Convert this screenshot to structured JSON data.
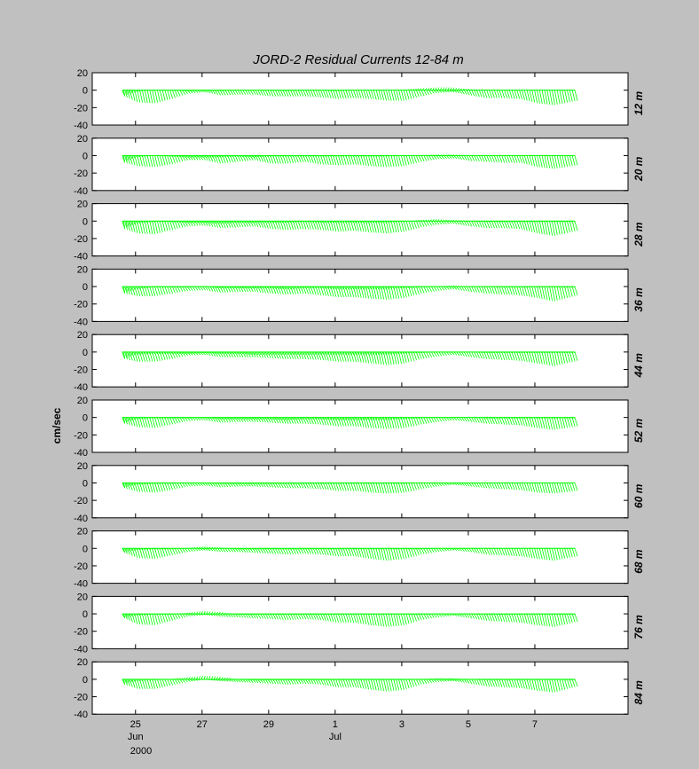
{
  "chart_data": {
    "type": "stick_plot",
    "title": "JORD-2  Residual Currents  12-84 m",
    "ylabel": "cm/sec",
    "ylim": [
      -40,
      20
    ],
    "yticks": [
      20,
      0,
      -20,
      -40
    ],
    "xticks": [
      {
        "day": 25,
        "label": "25",
        "sublabel": "Jun"
      },
      {
        "day": 27,
        "label": "27",
        "sublabel": ""
      },
      {
        "day": 29,
        "label": "29",
        "sublabel": ""
      },
      {
        "day": 31,
        "label": "1",
        "sublabel": "Jul"
      },
      {
        "day": 33,
        "label": "3",
        "sublabel": ""
      },
      {
        "day": 35,
        "label": "5",
        "sublabel": ""
      },
      {
        "day": 37,
        "label": "7",
        "sublabel": ""
      }
    ],
    "year_label": "2000",
    "xlim_days": [
      23.7,
      39.8
    ],
    "data_range_days": [
      24.6,
      38.2
    ],
    "stick_color": "#00ff00",
    "panels": [
      {
        "depth": "12 m",
        "envelope_t": [
          24.6,
          25.0,
          25.5,
          26.0,
          26.5,
          27.0,
          27.5,
          28.0,
          28.5,
          29.0,
          29.5,
          30.0,
          30.5,
          31.0,
          31.5,
          32.0,
          32.5,
          33.0,
          33.5,
          34.0,
          34.5,
          35.0,
          35.5,
          36.0,
          36.5,
          37.0,
          37.5,
          38.2
        ],
        "upper": [
          -6,
          -2,
          0,
          0,
          -1,
          0,
          -1,
          0,
          0,
          0,
          -1,
          0,
          0,
          -1,
          0,
          0,
          0,
          0,
          2,
          3,
          3,
          1,
          0,
          0,
          0,
          0,
          0,
          0
        ],
        "lower": [
          -7,
          -14,
          -15,
          -10,
          -4,
          -2,
          -6,
          -5,
          -5,
          -7,
          -7,
          -7,
          -8,
          -10,
          -9,
          -10,
          -12,
          -12,
          -7,
          -3,
          -2,
          -6,
          -9,
          -9,
          -10,
          -15,
          -17,
          -12
        ]
      },
      {
        "depth": "20 m",
        "envelope_t": [
          24.6,
          25.0,
          25.5,
          26.0,
          26.5,
          27.0,
          27.5,
          28.0,
          28.5,
          29.0,
          29.5,
          30.0,
          30.5,
          31.0,
          31.5,
          32.0,
          32.5,
          33.0,
          33.5,
          34.0,
          34.5,
          35.0,
          35.5,
          36.0,
          36.5,
          37.0,
          37.5,
          38.2
        ],
        "upper": [
          -7,
          -2,
          0,
          -1,
          -2,
          -2,
          -2,
          -1,
          -2,
          -1,
          -1,
          -1,
          -1,
          -1,
          -1,
          -1,
          -1,
          0,
          0,
          1,
          1,
          0,
          0,
          0,
          0,
          0,
          0,
          0
        ],
        "lower": [
          -8,
          -12,
          -13,
          -10,
          -5,
          -5,
          -9,
          -7,
          -5,
          -9,
          -9,
          -7,
          -10,
          -11,
          -10,
          -12,
          -13,
          -12,
          -7,
          -4,
          -3,
          -6,
          -7,
          -8,
          -8,
          -13,
          -15,
          -11
        ]
      },
      {
        "depth": "28 m",
        "envelope_t": [
          24.6,
          25.0,
          25.5,
          26.0,
          26.5,
          27.0,
          27.5,
          28.0,
          28.5,
          29.0,
          29.5,
          30.0,
          30.5,
          31.0,
          31.5,
          32.0,
          32.5,
          33.0,
          33.5,
          34.0,
          34.5,
          35.0,
          35.5,
          36.0,
          36.5,
          37.0,
          37.5,
          38.2
        ],
        "upper": [
          -8,
          -3,
          -1,
          -1,
          -2,
          -2,
          -3,
          -2,
          -2,
          -2,
          -2,
          -1,
          -2,
          -2,
          -2,
          -2,
          -2,
          -1,
          1,
          2,
          1,
          0,
          -1,
          -1,
          -1,
          -1,
          -1,
          -1
        ],
        "lower": [
          -9,
          -14,
          -15,
          -10,
          -6,
          -5,
          -8,
          -7,
          -6,
          -9,
          -10,
          -9,
          -10,
          -12,
          -11,
          -13,
          -14,
          -12,
          -7,
          -4,
          -3,
          -6,
          -8,
          -8,
          -9,
          -14,
          -17,
          -11
        ]
      },
      {
        "depth": "36 m",
        "envelope_t": [
          24.6,
          25.0,
          25.5,
          26.0,
          26.5,
          27.0,
          27.5,
          28.0,
          28.5,
          29.0,
          29.5,
          30.0,
          30.5,
          31.0,
          31.5,
          32.0,
          32.5,
          33.0,
          33.5,
          34.0,
          34.5,
          35.0,
          35.5,
          36.0,
          36.5,
          37.0,
          37.5,
          38.2
        ],
        "upper": [
          -7,
          -3,
          -1,
          -1,
          -1,
          0,
          -2,
          -2,
          -2,
          -2,
          -3,
          -2,
          -2,
          -3,
          -3,
          -3,
          -3,
          -2,
          -1,
          0,
          1,
          0,
          0,
          -1,
          -1,
          -1,
          -1,
          -1
        ],
        "lower": [
          -8,
          -11,
          -11,
          -8,
          -5,
          -4,
          -7,
          -6,
          -6,
          -8,
          -9,
          -8,
          -10,
          -12,
          -12,
          -14,
          -15,
          -13,
          -8,
          -5,
          -3,
          -6,
          -8,
          -9,
          -10,
          -13,
          -17,
          -10
        ]
      },
      {
        "depth": "44 m",
        "envelope_t": [
          24.6,
          25.0,
          25.5,
          26.0,
          26.5,
          27.0,
          27.5,
          28.0,
          28.5,
          29.0,
          29.5,
          30.0,
          30.5,
          31.0,
          31.5,
          32.0,
          32.5,
          33.0,
          33.5,
          34.0,
          34.5,
          35.0,
          35.5,
          36.0,
          36.5,
          37.0,
          37.5,
          38.2
        ],
        "upper": [
          -7,
          -3,
          -2,
          -2,
          -2,
          -1,
          -2,
          -2,
          -3,
          -3,
          -3,
          -3,
          -3,
          -3,
          -3,
          -3,
          -3,
          -2,
          -1,
          0,
          0,
          0,
          -1,
          -1,
          -1,
          -1,
          -1,
          -1
        ],
        "lower": [
          -8,
          -11,
          -11,
          -8,
          -4,
          -3,
          -6,
          -6,
          -6,
          -7,
          -8,
          -8,
          -9,
          -11,
          -11,
          -13,
          -15,
          -13,
          -8,
          -5,
          -3,
          -6,
          -8,
          -9,
          -10,
          -13,
          -16,
          -10
        ]
      },
      {
        "depth": "52 m",
        "envelope_t": [
          24.6,
          25.0,
          25.5,
          26.0,
          26.5,
          27.0,
          27.5,
          28.0,
          28.5,
          29.0,
          29.5,
          30.0,
          30.5,
          31.0,
          31.5,
          32.0,
          32.5,
          33.0,
          33.5,
          34.0,
          34.5,
          35.0,
          35.5,
          36.0,
          36.5,
          37.0,
          37.5,
          38.2
        ],
        "upper": [
          -6,
          -2,
          -1,
          -1,
          -1,
          0,
          -2,
          -2,
          -2,
          -2,
          -3,
          -2,
          -2,
          -3,
          -3,
          -3,
          -3,
          -2,
          -1,
          0,
          0,
          0,
          -1,
          -1,
          -1,
          -1,
          -1,
          -1
        ],
        "lower": [
          -7,
          -11,
          -12,
          -8,
          -4,
          -3,
          -6,
          -5,
          -5,
          -6,
          -7,
          -7,
          -8,
          -10,
          -10,
          -12,
          -13,
          -12,
          -8,
          -5,
          -3,
          -5,
          -7,
          -8,
          -9,
          -12,
          -14,
          -10
        ]
      },
      {
        "depth": "60 m",
        "envelope_t": [
          24.6,
          25.0,
          25.5,
          26.0,
          26.5,
          27.0,
          27.5,
          28.0,
          28.5,
          29.0,
          29.5,
          30.0,
          30.5,
          31.0,
          31.5,
          32.0,
          32.5,
          33.0,
          33.5,
          34.0,
          34.5,
          35.0,
          35.5,
          36.0,
          36.5,
          37.0,
          37.5,
          38.2
        ],
        "upper": [
          -5,
          -2,
          -1,
          -1,
          0,
          0,
          -1,
          -1,
          -1,
          -1,
          -1,
          -1,
          -1,
          -1,
          -1,
          -1,
          -1,
          -1,
          0,
          0,
          0,
          0,
          0,
          0,
          0,
          0,
          0,
          0
        ],
        "lower": [
          -6,
          -10,
          -11,
          -8,
          -4,
          -3,
          -5,
          -4,
          -4,
          -5,
          -6,
          -6,
          -7,
          -9,
          -9,
          -11,
          -12,
          -11,
          -7,
          -4,
          -2,
          -4,
          -6,
          -7,
          -8,
          -11,
          -12,
          -9
        ]
      },
      {
        "depth": "68 m",
        "envelope_t": [
          24.6,
          25.0,
          25.5,
          26.0,
          26.5,
          27.0,
          27.5,
          28.0,
          28.5,
          29.0,
          29.5,
          30.0,
          30.5,
          31.0,
          31.5,
          32.0,
          32.5,
          33.0,
          33.5,
          34.0,
          34.5,
          35.0,
          35.5,
          36.0,
          36.5,
          37.0,
          37.5,
          38.2
        ],
        "upper": [
          -4,
          -2,
          -1,
          -1,
          0,
          2,
          1,
          -1,
          -1,
          -1,
          -1,
          -1,
          -1,
          -1,
          -1,
          -1,
          -1,
          -1,
          -1,
          0,
          0,
          0,
          0,
          0,
          0,
          0,
          0,
          0
        ],
        "lower": [
          -5,
          -11,
          -12,
          -8,
          -4,
          -2,
          -4,
          -4,
          -5,
          -6,
          -7,
          -6,
          -7,
          -9,
          -9,
          -12,
          -14,
          -12,
          -7,
          -4,
          -2,
          -4,
          -7,
          -8,
          -9,
          -12,
          -14,
          -9
        ]
      },
      {
        "depth": "76 m",
        "envelope_t": [
          24.6,
          25.0,
          25.5,
          26.0,
          26.5,
          27.0,
          27.5,
          28.0,
          28.5,
          29.0,
          29.5,
          30.0,
          30.5,
          31.0,
          31.5,
          32.0,
          32.5,
          33.0,
          33.5,
          34.0,
          34.5,
          35.0,
          35.5,
          36.0,
          36.5,
          37.0,
          37.5,
          38.2
        ],
        "upper": [
          -4,
          -2,
          -1,
          -1,
          1,
          3,
          2,
          -1,
          -1,
          -1,
          -1,
          -1,
          -1,
          -1,
          -1,
          -1,
          -1,
          -1,
          -1,
          0,
          0,
          0,
          -1,
          -1,
          -1,
          -1,
          -1,
          -1
        ],
        "lower": [
          -5,
          -12,
          -13,
          -8,
          -3,
          -1,
          -3,
          -4,
          -5,
          -6,
          -7,
          -6,
          -7,
          -10,
          -10,
          -13,
          -15,
          -13,
          -7,
          -4,
          -2,
          -5,
          -8,
          -9,
          -10,
          -13,
          -15,
          -9
        ]
      },
      {
        "depth": "84 m",
        "envelope_t": [
          24.6,
          25.0,
          25.5,
          26.0,
          26.5,
          27.0,
          27.5,
          28.0,
          28.5,
          29.0,
          29.5,
          30.0,
          30.5,
          31.0,
          31.5,
          32.0,
          32.5,
          33.0,
          33.5,
          34.0,
          34.5,
          35.0,
          35.5,
          36.0,
          36.5,
          37.0,
          37.5,
          38.2
        ],
        "upper": [
          -5,
          -2,
          -1,
          0,
          2,
          4,
          3,
          0,
          -1,
          -1,
          -1,
          -1,
          -1,
          -1,
          -1,
          -1,
          -1,
          -1,
          0,
          1,
          1,
          0,
          -1,
          -1,
          -1,
          -1,
          -1,
          -1
        ],
        "lower": [
          -6,
          -11,
          -11,
          -7,
          -3,
          0,
          -2,
          -3,
          -4,
          -5,
          -6,
          -5,
          -6,
          -9,
          -9,
          -12,
          -14,
          -12,
          -6,
          -3,
          -2,
          -5,
          -8,
          -9,
          -10,
          -13,
          -15,
          -8
        ]
      }
    ]
  }
}
